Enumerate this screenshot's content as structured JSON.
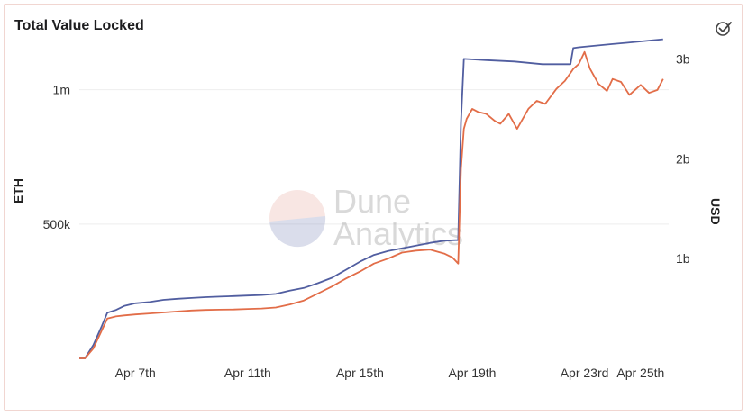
{
  "header": {
    "title": "Total Value Locked",
    "action_icon": "check-circle-icon"
  },
  "watermark": {
    "line1": "Dune",
    "line2": "Analytics"
  },
  "colors": {
    "eth_series": "#515ea0",
    "usd_series": "#e26d48",
    "grid": "#eeeeee",
    "tick_text": "#333333"
  },
  "chart_data": {
    "type": "line",
    "title": "Total Value Locked",
    "ylabel": "ETH",
    "y2label": "USD",
    "ylim": [
      0,
      1200000
    ],
    "y2lim": [
      0,
      3230000000
    ],
    "y_ticks": [
      {
        "value": 500000,
        "label": "500k"
      },
      {
        "value": 1000000,
        "label": "1m"
      }
    ],
    "y2_ticks": [
      {
        "value": 1000000000,
        "label": "1b"
      },
      {
        "value": 2000000000,
        "label": "2b"
      },
      {
        "value": 3000000000,
        "label": "3b"
      }
    ],
    "xlim": [
      5.0,
      26.0
    ],
    "x_ticks": [
      {
        "value": 7,
        "label": "Apr 7th"
      },
      {
        "value": 11,
        "label": "Apr 11th"
      },
      {
        "value": 15,
        "label": "Apr 15th"
      },
      {
        "value": 19,
        "label": "Apr 19th"
      },
      {
        "value": 23,
        "label": "Apr 23rd"
      },
      {
        "value": 25,
        "label": "Apr 25th"
      }
    ],
    "grid": true,
    "series": [
      {
        "axis": "left",
        "x": [
          5.0,
          5.2,
          5.5,
          5.8,
          6.0,
          6.3,
          6.6,
          7.0,
          7.5,
          8.0,
          8.5,
          9.0,
          9.5,
          10.0,
          10.5,
          11.0,
          11.5,
          12.0,
          12.5,
          13.0,
          13.5,
          14.0,
          14.5,
          15.0,
          15.5,
          16.0,
          16.5,
          17.0,
          17.5,
          18.0,
          18.4,
          18.5,
          18.6,
          18.7,
          19.5,
          20.5,
          21.0,
          21.5,
          22.0,
          22.5,
          22.6,
          22.8,
          23.0,
          23.5,
          24.0,
          24.5,
          25.0,
          25.5,
          25.8
        ],
        "values": [
          0,
          0,
          50000,
          120000,
          170000,
          180000,
          195000,
          205000,
          210000,
          218000,
          222000,
          225000,
          228000,
          230000,
          232000,
          234000,
          236000,
          240000,
          252000,
          262000,
          280000,
          300000,
          330000,
          360000,
          385000,
          400000,
          410000,
          420000,
          430000,
          438000,
          440000,
          440000,
          880000,
          1115000,
          1110000,
          1105000,
          1100000,
          1095000,
          1095000,
          1095000,
          1155000,
          1158000,
          1160000,
          1165000,
          1170000,
          1175000,
          1180000,
          1185000,
          1188000
        ]
      },
      {
        "axis": "right",
        "x": [
          5.0,
          5.2,
          5.5,
          5.8,
          6.0,
          6.3,
          6.6,
          7.0,
          7.5,
          8.0,
          8.5,
          9.0,
          9.5,
          10.0,
          10.5,
          11.0,
          11.5,
          12.0,
          12.5,
          13.0,
          13.5,
          14.0,
          14.5,
          15.0,
          15.5,
          16.0,
          16.5,
          17.0,
          17.5,
          18.0,
          18.3,
          18.5,
          18.6,
          18.7,
          18.8,
          19.0,
          19.2,
          19.5,
          19.8,
          20.0,
          20.3,
          20.6,
          21.0,
          21.3,
          21.6,
          22.0,
          22.3,
          22.6,
          22.8,
          23.0,
          23.2,
          23.5,
          23.8,
          24.0,
          24.3,
          24.6,
          25.0,
          25.3,
          25.6,
          25.8
        ],
        "values": [
          0,
          0,
          100000000,
          280000000,
          400000000,
          420000000,
          430000000,
          440000000,
          450000000,
          460000000,
          470000000,
          480000000,
          485000000,
          488000000,
          490000000,
          495000000,
          500000000,
          510000000,
          540000000,
          580000000,
          650000000,
          720000000,
          800000000,
          870000000,
          950000000,
          1000000000,
          1060000000,
          1080000000,
          1090000000,
          1050000000,
          1010000000,
          950000000,
          1900000000,
          2300000000,
          2400000000,
          2500000000,
          2470000000,
          2450000000,
          2380000000,
          2350000000,
          2450000000,
          2300000000,
          2500000000,
          2580000000,
          2550000000,
          2700000000,
          2780000000,
          2900000000,
          2950000000,
          3070000000,
          2900000000,
          2750000000,
          2680000000,
          2800000000,
          2770000000,
          2640000000,
          2740000000,
          2660000000,
          2690000000,
          2800000000
        ]
      }
    ]
  }
}
